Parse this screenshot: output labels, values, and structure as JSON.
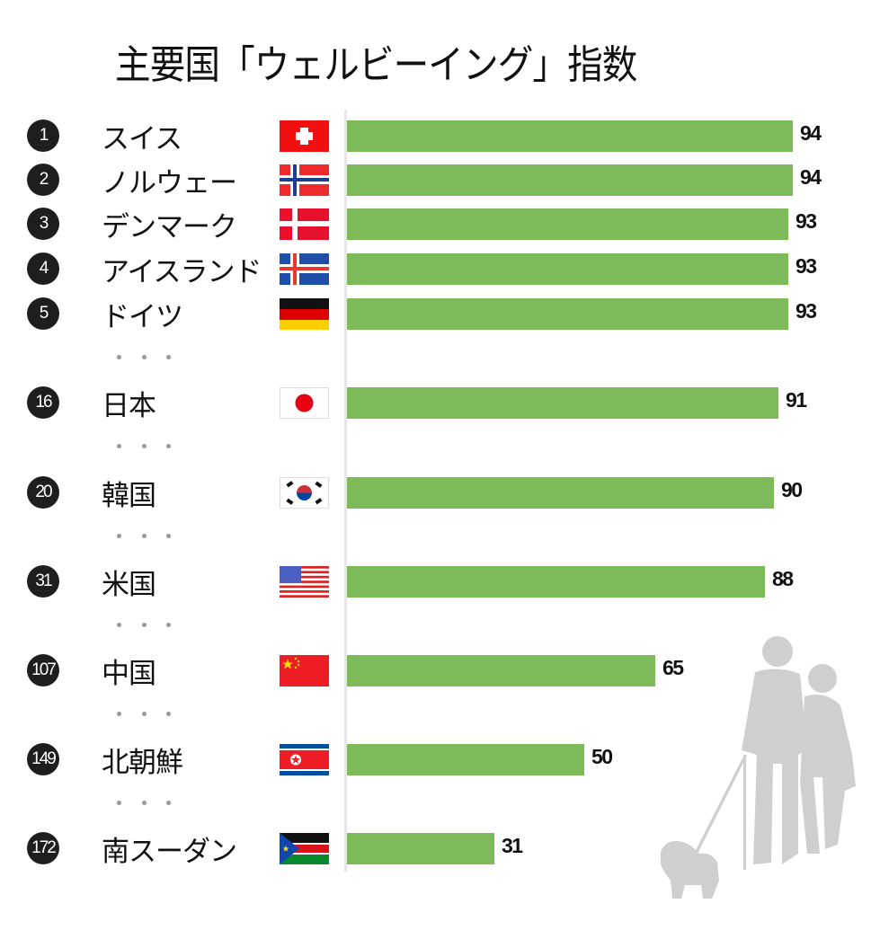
{
  "title": "主要国「ウェルビーイング」指数",
  "colors": {
    "bar": "#7dba5a",
    "rank_badge": "#1e1e1e",
    "axis": "#e6e6e6",
    "silhouette": "#cfcfcf"
  },
  "rows": [
    {
      "rank": "1",
      "name": "スイス",
      "flag": "switzerland-flag",
      "value": 94,
      "label": "94"
    },
    {
      "rank": "2",
      "name": "ノルウェー",
      "flag": "norway-flag",
      "value": 94,
      "label": "94"
    },
    {
      "rank": "3",
      "name": "デンマーク",
      "flag": "denmark-flag",
      "value": 93,
      "label": "93"
    },
    {
      "rank": "4",
      "name": "アイスランド",
      "flag": "iceland-flag",
      "value": 93,
      "label": "93"
    },
    {
      "rank": "5",
      "name": "ドイツ",
      "flag": "germany-flag",
      "value": 93,
      "label": "93"
    },
    {
      "rank": "16",
      "name": "日本",
      "flag": "japan-flag",
      "value": 91,
      "label": "91"
    },
    {
      "rank": "20",
      "name": "韓国",
      "flag": "south-korea-flag",
      "value": 90,
      "label": "90"
    },
    {
      "rank": "31",
      "name": "米国",
      "flag": "usa-flag",
      "value": 88,
      "label": "88"
    },
    {
      "rank": "107",
      "name": "中国",
      "flag": "china-flag",
      "value": 65,
      "label": "65"
    },
    {
      "rank": "149",
      "name": "北朝鮮",
      "flag": "north-korea-flag",
      "value": 50,
      "label": "50"
    },
    {
      "rank": "172",
      "name": "南スーダン",
      "flag": "south-sudan-flag",
      "value": 31,
      "label": "31"
    }
  ],
  "chart_data": {
    "type": "bar",
    "orientation": "horizontal",
    "title": "主要国「ウェルビーイング」指数",
    "categories": [
      "スイス",
      "ノルウェー",
      "デンマーク",
      "アイスランド",
      "ドイツ",
      "日本",
      "韓国",
      "米国",
      "中国",
      "北朝鮮",
      "南スーダン"
    ],
    "ranks": [
      1,
      2,
      3,
      4,
      5,
      16,
      20,
      31,
      107,
      149,
      172
    ],
    "values": [
      94,
      94,
      93,
      93,
      93,
      91,
      90,
      88,
      65,
      50,
      31
    ],
    "xlabel": "",
    "ylabel": "",
    "grid": false,
    "legend": null,
    "data_labels": true,
    "gaps_marked_with_ellipsis_after_ranks": [
      5,
      16,
      20,
      31,
      107,
      149
    ]
  }
}
